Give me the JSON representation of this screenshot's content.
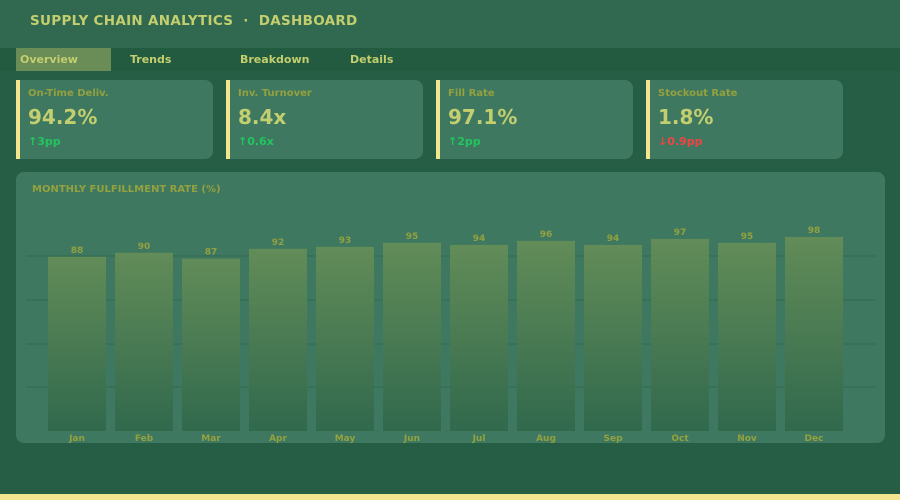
{
  "header": {
    "title": "SUPPLY CHAIN ANALYTICS  ·  DASHBOARD"
  },
  "tabs": [
    {
      "label": "Overview",
      "active": true
    },
    {
      "label": "Trends"
    },
    {
      "label": "Breakdown"
    },
    {
      "label": "Details"
    }
  ],
  "kpis": [
    {
      "label": "On-Time Deliv.",
      "value": "94.2%",
      "delta": "↑3pp",
      "trend": "up"
    },
    {
      "label": "Inv. Turnover",
      "value": "8.4x",
      "delta": "↑0.6x",
      "trend": "up"
    },
    {
      "label": "Fill Rate",
      "value": "97.1%",
      "delta": "↑2pp",
      "trend": "up"
    },
    {
      "label": "Stockout Rate",
      "value": "1.8%",
      "delta": "↓0.9pp",
      "trend": "down"
    }
  ],
  "colors": {
    "up": "#22c55e",
    "down": "#ef4444",
    "accent": "#f3e48f",
    "text": "#c3cf6f"
  },
  "chart_data": {
    "type": "bar",
    "title": "MONTHLY FULFILLMENT RATE (%)",
    "categories": [
      "Jan",
      "Feb",
      "Mar",
      "Apr",
      "May",
      "Jun",
      "Jul",
      "Aug",
      "Sep",
      "Oct",
      "Nov",
      "Dec"
    ],
    "values": [
      88,
      90,
      87,
      92,
      93,
      95,
      94,
      96,
      94,
      97,
      95,
      98
    ],
    "ylim": [
      0,
      100
    ],
    "grid": true
  }
}
